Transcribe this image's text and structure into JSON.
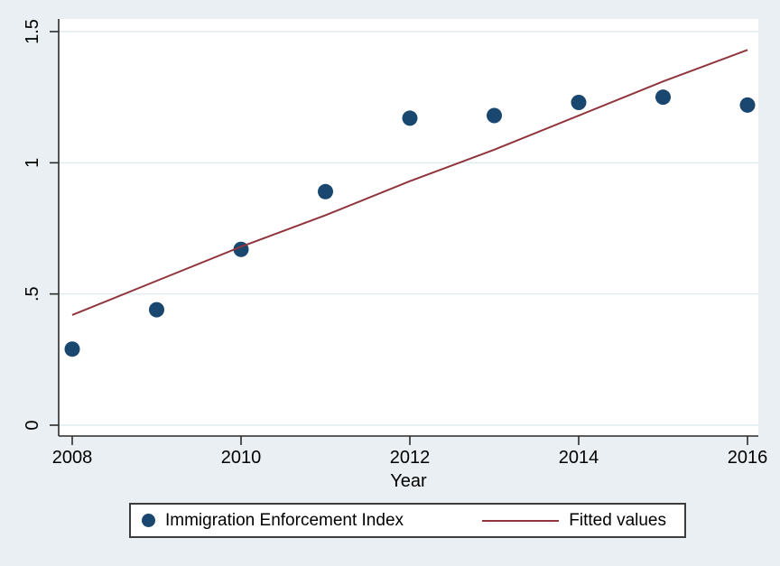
{
  "figure": {
    "background_color": "#e9eff2",
    "plot_background_color": "#ffffff",
    "gridline_color": "#e2ebee",
    "axis_color": "#2b2b2b",
    "text_color": "#000000"
  },
  "chart_data": {
    "type": "scatter",
    "title": "",
    "xlabel": "Year",
    "ylabel": "",
    "x": [
      2008,
      2009,
      2010,
      2011,
      2012,
      2013,
      2014,
      2015,
      2016
    ],
    "series": [
      {
        "name": "Immigration Enforcement Index",
        "type": "scatter",
        "marker": "circle",
        "color": "#1a476f",
        "values": [
          0.29,
          0.44,
          0.67,
          0.89,
          1.17,
          1.18,
          1.23,
          1.25,
          1.22
        ]
      },
      {
        "name": "Fitted values",
        "type": "line",
        "color": "#90353b",
        "values": [
          0.42,
          0.55,
          0.68,
          0.8,
          0.93,
          1.05,
          1.18,
          1.31,
          1.43
        ]
      }
    ],
    "xlim": [
      2008,
      2016
    ],
    "ylim": [
      0,
      1.5
    ],
    "xticks": {
      "values": [
        2008,
        2010,
        2012,
        2014,
        2016
      ],
      "labels": [
        "2008",
        "2010",
        "2012",
        "2014",
        "2016"
      ]
    },
    "yticks": {
      "values": [
        0,
        0.5,
        1,
        1.5
      ],
      "labels": [
        "0",
        ".5",
        "1",
        "1.5"
      ]
    },
    "grid": "horizontal-only",
    "legend_position": "bottom-outside"
  },
  "legend": {
    "items": [
      {
        "label": "Immigration Enforcement Index",
        "marker": "dot",
        "color": "#1a476f"
      },
      {
        "label": "Fitted values",
        "marker": "line",
        "color": "#90353b"
      }
    ]
  }
}
